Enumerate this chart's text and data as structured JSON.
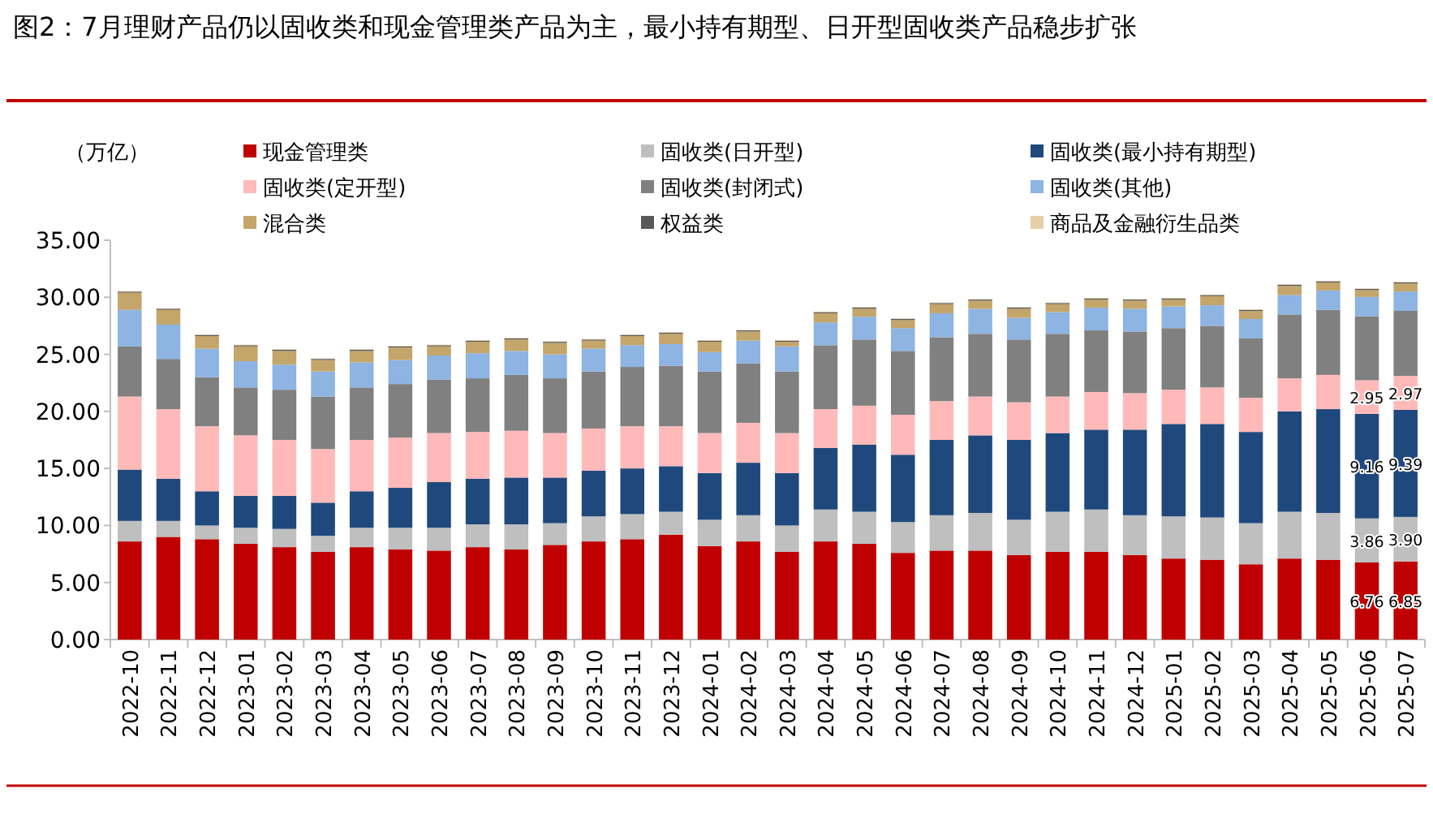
{
  "chart_data": {
    "type": "bar",
    "stacked": true,
    "title": "图2：7月理财产品仍以固收类和现金管理类产品为主，最小持有期型、日开型固收类产品稳步扩张",
    "ylabel": "（万亿）",
    "legend": "top",
    "categories": [
      "2022-10",
      "2022-11",
      "2022-12",
      "2023-01",
      "2023-02",
      "2023-03",
      "2023-04",
      "2023-05",
      "2023-06",
      "2023-07",
      "2023-08",
      "2023-09",
      "2023-10",
      "2023-11",
      "2023-12",
      "2024-01",
      "2024-02",
      "2024-03",
      "2024-04",
      "2024-05",
      "2024-06",
      "2024-07",
      "2024-08",
      "2024-09",
      "2024-10",
      "2024-11",
      "2024-12",
      "2025-01",
      "2025-02",
      "2025-03",
      "2025-04",
      "2025-05",
      "2025-06",
      "2025-07"
    ],
    "ylim": [
      0,
      35
    ],
    "yticks": [
      {
        "value": 0,
        "label": "0.00"
      },
      {
        "value": 5,
        "label": "5.00"
      },
      {
        "value": 10,
        "label": "10.00"
      },
      {
        "value": 15,
        "label": "15.00"
      },
      {
        "value": 20,
        "label": "20.00"
      },
      {
        "value": 25,
        "label": "25.00"
      },
      {
        "value": 30,
        "label": "30.00"
      },
      {
        "value": 35,
        "label": "35.00"
      }
    ],
    "series": [
      {
        "name": "现金管理类",
        "color": "#c00000",
        "values": [
          8.6,
          9.0,
          8.8,
          8.4,
          8.1,
          7.7,
          8.1,
          7.9,
          7.8,
          8.1,
          7.9,
          8.3,
          8.6,
          8.8,
          9.2,
          8.2,
          8.6,
          7.7,
          8.6,
          8.4,
          7.6,
          7.8,
          7.8,
          7.4,
          7.7,
          7.7,
          7.4,
          7.1,
          7.0,
          6.6,
          7.1,
          7.0,
          6.76,
          6.85
        ],
        "value_labels": [
          null,
          null,
          null,
          null,
          null,
          null,
          null,
          null,
          null,
          null,
          null,
          null,
          null,
          null,
          null,
          null,
          null,
          null,
          null,
          null,
          null,
          null,
          null,
          null,
          null,
          null,
          null,
          null,
          null,
          null,
          null,
          null,
          "6.76",
          "6.85"
        ]
      },
      {
        "name": "固收类(日开型)",
        "color": "#bfbfbf",
        "values": [
          1.8,
          1.4,
          1.2,
          1.4,
          1.6,
          1.4,
          1.7,
          1.9,
          2.0,
          2.0,
          2.2,
          1.9,
          2.2,
          2.2,
          2.0,
          2.3,
          2.3,
          2.3,
          2.8,
          2.8,
          2.7,
          3.1,
          3.3,
          3.1,
          3.5,
          3.7,
          3.5,
          3.7,
          3.7,
          3.6,
          4.1,
          4.1,
          3.86,
          3.9
        ],
        "value_labels": [
          null,
          null,
          null,
          null,
          null,
          null,
          null,
          null,
          null,
          null,
          null,
          null,
          null,
          null,
          null,
          null,
          null,
          null,
          null,
          null,
          null,
          null,
          null,
          null,
          null,
          null,
          null,
          null,
          null,
          null,
          null,
          null,
          "3.86",
          "3.90"
        ]
      },
      {
        "name": "固收类(最小持有期型)",
        "color": "#1f497d",
        "values": [
          4.5,
          3.7,
          3.0,
          2.8,
          2.9,
          2.9,
          3.2,
          3.5,
          4.0,
          4.0,
          4.1,
          4.0,
          4.0,
          4.0,
          4.0,
          4.1,
          4.6,
          4.6,
          5.4,
          5.9,
          5.9,
          6.6,
          6.8,
          7.0,
          6.9,
          7.0,
          7.5,
          8.1,
          8.2,
          8.0,
          8.8,
          9.1,
          9.16,
          9.39
        ],
        "value_labels": [
          null,
          null,
          null,
          null,
          null,
          null,
          null,
          null,
          null,
          null,
          null,
          null,
          null,
          null,
          null,
          null,
          null,
          null,
          null,
          null,
          null,
          null,
          null,
          null,
          null,
          null,
          null,
          null,
          null,
          null,
          null,
          null,
          "9.16",
          "9.39"
        ]
      },
      {
        "name": "固收类(定开型)",
        "color": "#ffb9b9",
        "values": [
          6.4,
          6.1,
          5.7,
          5.3,
          4.9,
          4.7,
          4.5,
          4.4,
          4.3,
          4.1,
          4.1,
          3.9,
          3.7,
          3.7,
          3.5,
          3.5,
          3.5,
          3.5,
          3.4,
          3.4,
          3.5,
          3.4,
          3.4,
          3.3,
          3.2,
          3.3,
          3.2,
          3.0,
          3.2,
          3.0,
          2.9,
          3.0,
          2.95,
          2.97
        ],
        "value_labels": [
          null,
          null,
          null,
          null,
          null,
          null,
          null,
          null,
          null,
          null,
          null,
          null,
          null,
          null,
          null,
          null,
          null,
          null,
          null,
          null,
          null,
          null,
          null,
          null,
          null,
          null,
          null,
          null,
          null,
          null,
          null,
          null,
          "2.95",
          "2.97"
        ]
      },
      {
        "name": "固收类(封闭式)",
        "color": "#808080",
        "values": [
          4.4,
          4.4,
          4.3,
          4.2,
          4.4,
          4.6,
          4.6,
          4.7,
          4.7,
          4.7,
          4.9,
          4.8,
          5.0,
          5.2,
          5.3,
          5.4,
          5.2,
          5.4,
          5.6,
          5.8,
          5.6,
          5.6,
          5.5,
          5.5,
          5.5,
          5.4,
          5.4,
          5.4,
          5.4,
          5.2,
          5.6,
          5.7,
          5.6,
          5.7
        ]
      },
      {
        "name": "固收类(其他)",
        "color": "#8db4e2",
        "values": [
          3.2,
          3.0,
          2.5,
          2.3,
          2.2,
          2.2,
          2.2,
          2.1,
          2.1,
          2.2,
          2.1,
          2.1,
          2.0,
          1.9,
          1.9,
          1.7,
          2.0,
          2.2,
          2.0,
          2.0,
          2.0,
          2.1,
          2.2,
          1.9,
          1.9,
          2.0,
          2.0,
          1.9,
          1.8,
          1.7,
          1.7,
          1.7,
          1.7,
          1.7
        ]
      },
      {
        "name": "混合类",
        "color": "#c4a56a",
        "values": [
          1.5,
          1.3,
          1.1,
          1.3,
          1.2,
          1.0,
          1.0,
          1.1,
          0.8,
          1.0,
          1.0,
          1.0,
          0.7,
          0.8,
          0.9,
          0.9,
          0.8,
          0.4,
          0.8,
          0.7,
          0.7,
          0.8,
          0.7,
          0.8,
          0.7,
          0.7,
          0.7,
          0.6,
          0.8,
          0.7,
          0.8,
          0.7,
          0.6,
          0.7
        ]
      },
      {
        "name": "权益类",
        "color": "#595959",
        "values": [
          0.1,
          0.1,
          0.1,
          0.1,
          0.1,
          0.1,
          0.1,
          0.1,
          0.1,
          0.1,
          0.1,
          0.1,
          0.1,
          0.1,
          0.1,
          0.1,
          0.1,
          0.1,
          0.1,
          0.1,
          0.1,
          0.1,
          0.1,
          0.1,
          0.1,
          0.1,
          0.1,
          0.1,
          0.1,
          0.1,
          0.1,
          0.1,
          0.1,
          0.1
        ]
      },
      {
        "name": "商品及金融衍生品类",
        "color": "#e6cfa6",
        "values": [
          0.05,
          0.05,
          0.05,
          0.05,
          0.05,
          0.05,
          0.05,
          0.05,
          0.05,
          0.05,
          0.05,
          0.05,
          0.05,
          0.05,
          0.05,
          0.05,
          0.05,
          0.05,
          0.05,
          0.05,
          0.05,
          0.05,
          0.05,
          0.05,
          0.05,
          0.05,
          0.05,
          0.05,
          0.05,
          0.05,
          0.05,
          0.05,
          0.05,
          0.05
        ]
      }
    ]
  }
}
